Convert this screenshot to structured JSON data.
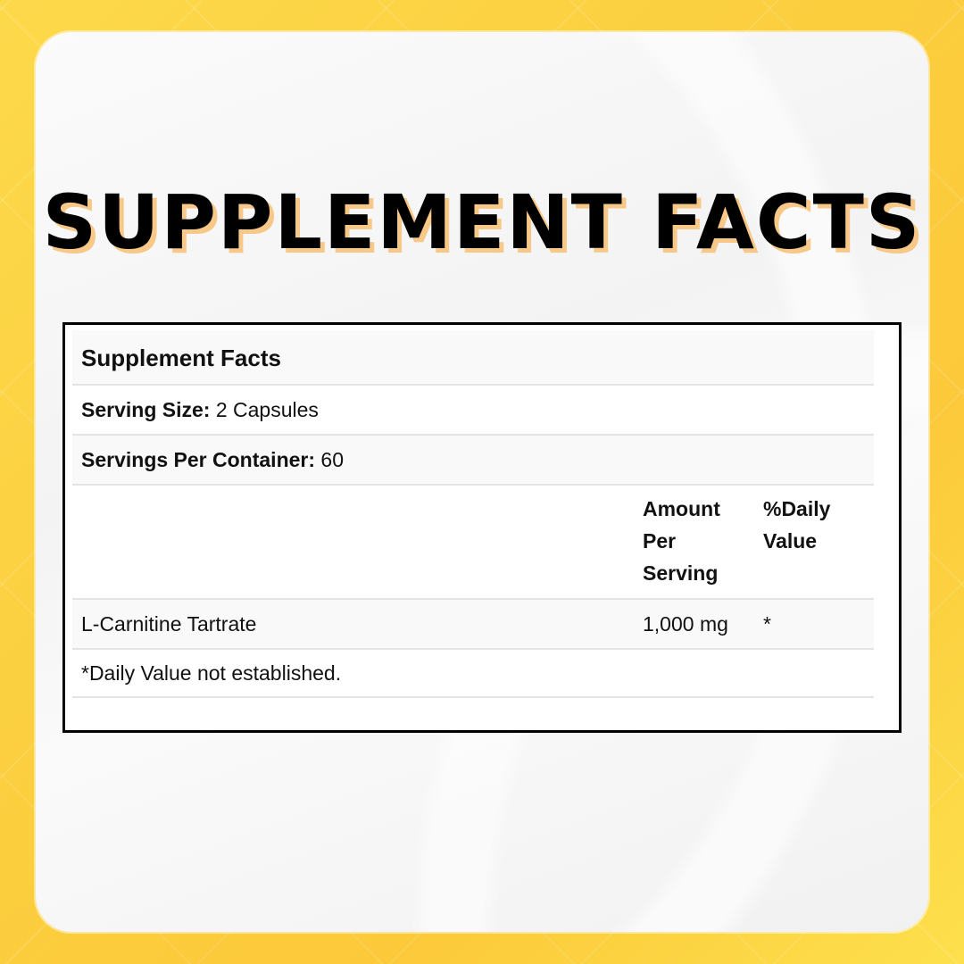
{
  "heading": "SUPPLEMENT FACTS",
  "table": {
    "title": "Supplement Facts",
    "serving_size_label": "Serving Size:",
    "serving_size_value": "2 Capsules",
    "servings_per_container_label": "Servings Per Container:",
    "servings_per_container_value": "60",
    "col_amount": [
      "Amount",
      "Per",
      "Serving"
    ],
    "col_dv": [
      "%Daily",
      "Value"
    ],
    "rows": [
      {
        "name": "L-Carnitine Tartrate",
        "amount": "1,000 mg",
        "dv": "*"
      }
    ],
    "footnote": "*Daily Value not established."
  },
  "colors": {
    "background": "#fcd03f",
    "title_shadow": "#f7c887",
    "border": "#000000"
  }
}
